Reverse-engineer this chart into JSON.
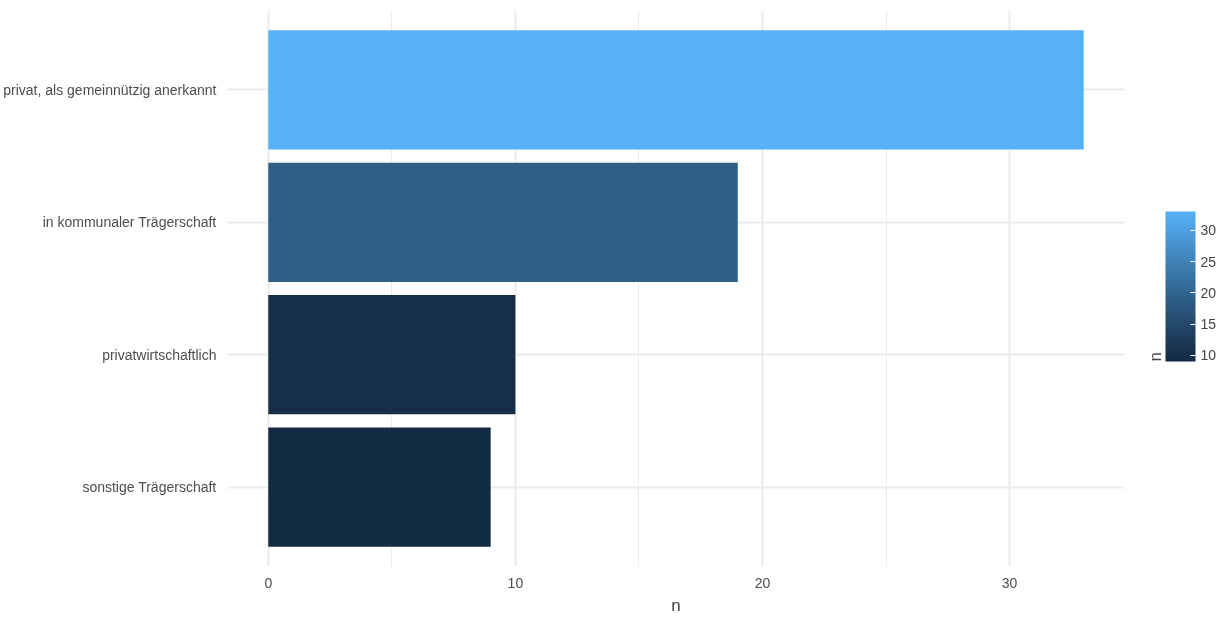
{
  "chart_data": {
    "type": "bar",
    "orientation": "horizontal",
    "xlabel": "n",
    "clabel": "n",
    "categories": [
      "privat, als gemeinnützig anerkannt",
      "in kommunaler Trägerschaft",
      "privatwirtschaftlich",
      "sonstige Trägerschaft"
    ],
    "values": [
      33,
      19,
      10,
      9
    ],
    "colors": [
      "#56b1f7",
      "#2e5f87",
      "#162e47",
      "#132b43"
    ],
    "xlim": [
      -1.65,
      34.65
    ],
    "xticks": [
      0,
      10,
      20,
      30
    ],
    "clim": [
      9,
      33
    ],
    "cticks": [
      10,
      15,
      20,
      25,
      30
    ],
    "grid": true
  }
}
